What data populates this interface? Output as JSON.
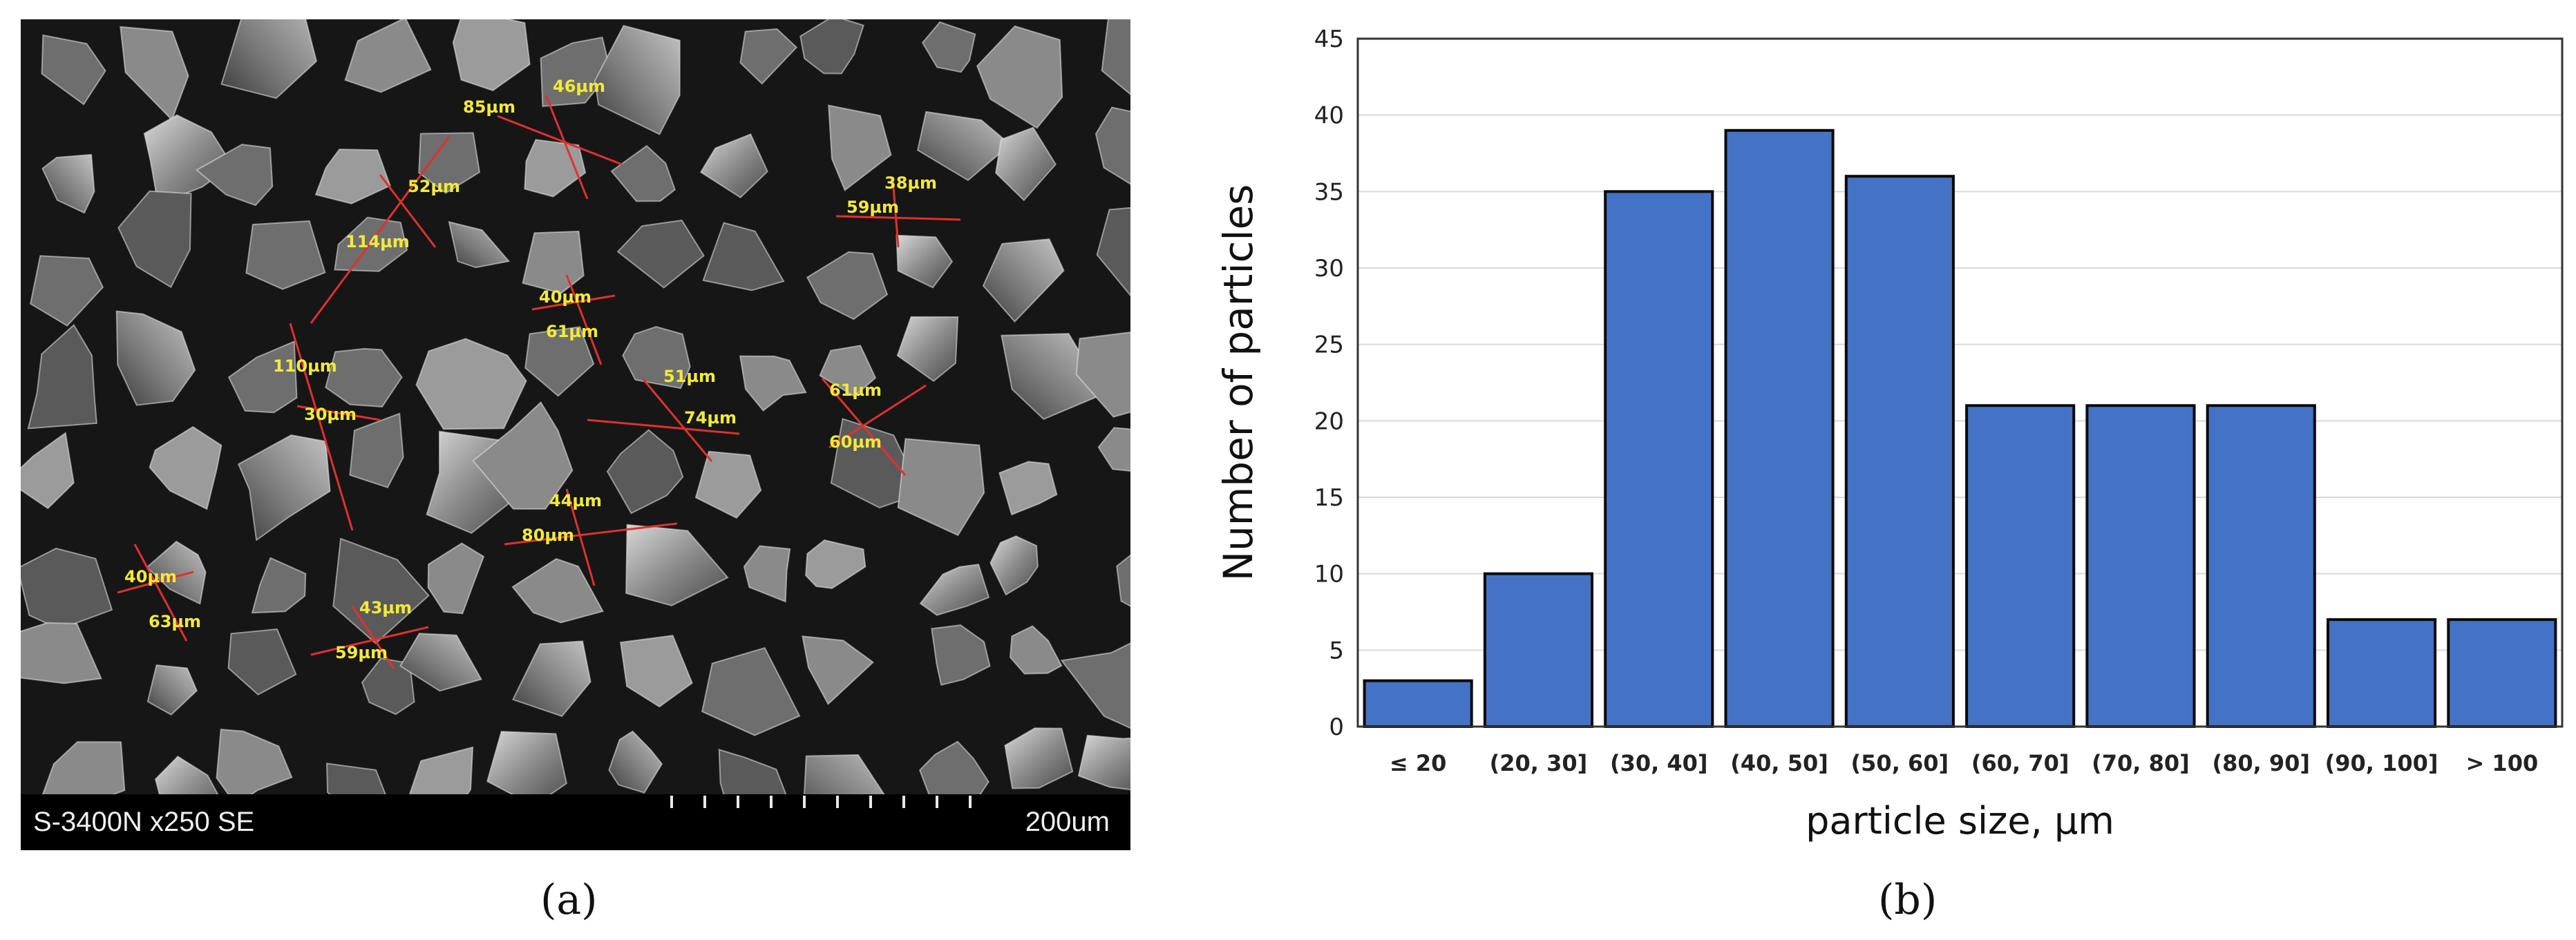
{
  "panel_a": {
    "info": "S-3400N x250 SE",
    "scale_label": "200um",
    "caption": "(a)",
    "measurements": [
      "46µm",
      "85µm",
      "52µm",
      "114µm",
      "38µm",
      "59µm",
      "40µm",
      "61µm",
      "110µm",
      "30µm",
      "51µm",
      "74µm",
      "61µm",
      "60µm",
      "44µm",
      "80µm",
      "40µm",
      "63µm",
      "43µm",
      "59µm"
    ]
  },
  "panel_b": {
    "caption": "(b)"
  },
  "colors": {
    "bar": "#4472c4",
    "bar_edge": "#0a0a0a",
    "grid": "#d9d9d9"
  },
  "chart_data": {
    "type": "bar",
    "categories": [
      "≤ 20",
      "(20, 30]",
      "(30, 40]",
      "(40, 50]",
      "(50, 60]",
      "(60, 70]",
      "(70, 80]",
      "(80, 90]",
      "(90, 100]",
      "> 100"
    ],
    "values": [
      3,
      10,
      35,
      39,
      36,
      21,
      21,
      21,
      7,
      7
    ],
    "title": "",
    "xlabel": "particle size, µm",
    "ylabel": "Number of particles",
    "ylim": [
      0,
      45
    ],
    "yticks": [
      0,
      5,
      10,
      15,
      20,
      25,
      30,
      35,
      40,
      45
    ],
    "grid": true,
    "legend": "none"
  }
}
